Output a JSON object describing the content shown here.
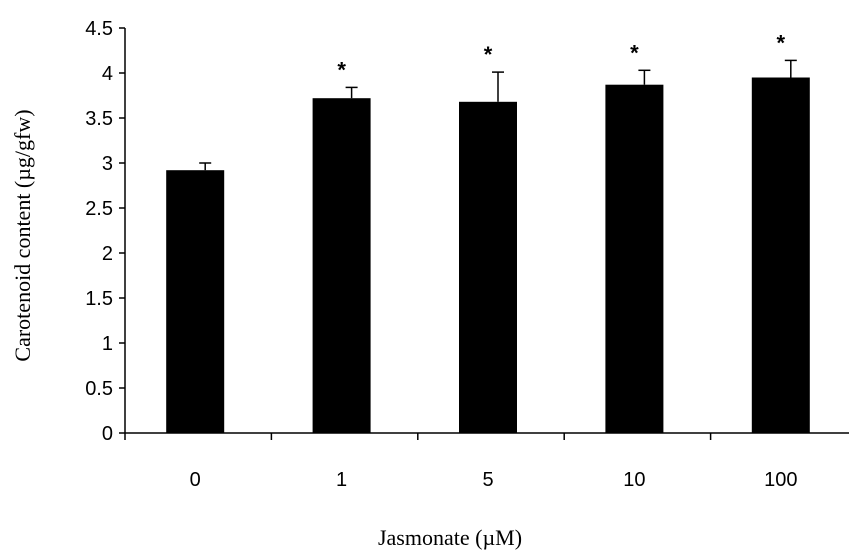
{
  "chart_data": {
    "type": "bar",
    "categories": [
      "0",
      "1",
      "5",
      "10",
      "100"
    ],
    "values": [
      2.92,
      3.72,
      3.68,
      3.87,
      3.95
    ],
    "error": [
      0.08,
      0.12,
      0.33,
      0.16,
      0.19
    ],
    "significance": [
      "",
      "*",
      "*",
      "*",
      "*"
    ],
    "xlabel": "Jasmonate (µM)",
    "ylabel": "Carotenoid content (µg/gfw)",
    "ylim": [
      0,
      4.5
    ],
    "yticks": [
      "0",
      "0.5",
      "1",
      "1.5",
      "2",
      "2.5",
      "3",
      "3.5",
      "4",
      "4.5"
    ],
    "grid": false,
    "bar_color": "#000000"
  }
}
